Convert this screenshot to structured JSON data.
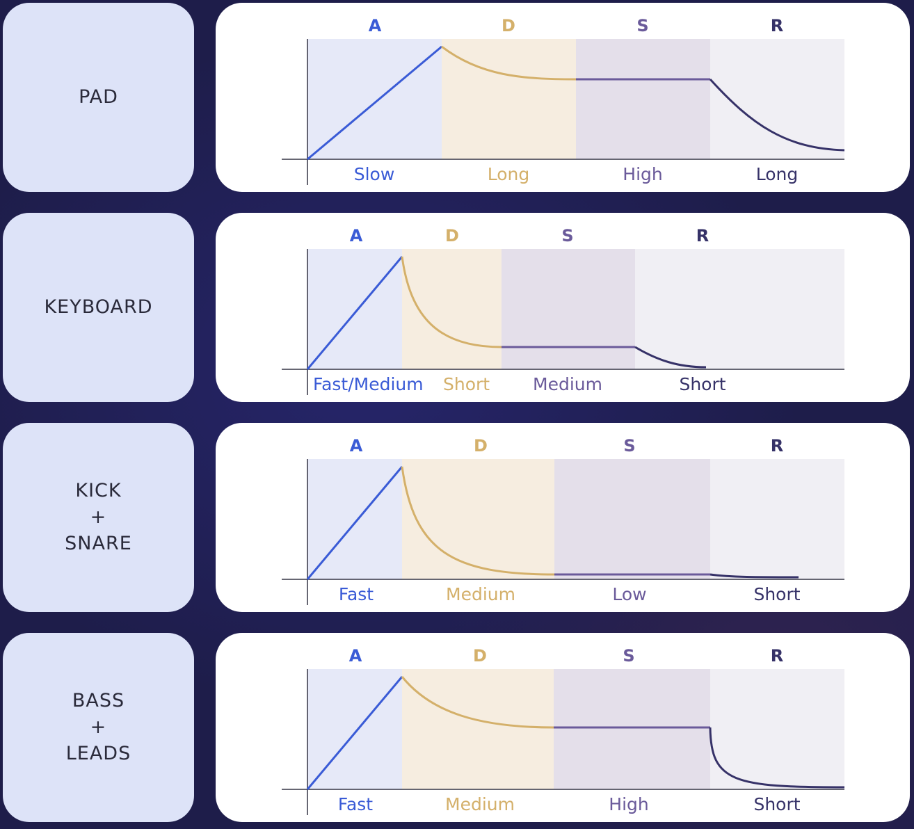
{
  "colors": {
    "attack": "#3a5bd6",
    "decay": "#d4b06a",
    "sustain": "#6a5a9a",
    "release": "#363268",
    "attack_bg": "#e6e9f8",
    "decay_bg": "#f6ede0",
    "sustain_bg": "#e4dfea",
    "release_bg": "#f0eff4",
    "axis": "#333344"
  },
  "envelopes": [
    {
      "name": "PAD",
      "phases": [
        {
          "letter": "A",
          "value": "Slow"
        },
        {
          "letter": "D",
          "value": "Long"
        },
        {
          "letter": "S",
          "value": "High"
        },
        {
          "letter": "R",
          "value": "Long"
        }
      ]
    },
    {
      "name": "KEYBOARD",
      "phases": [
        {
          "letter": "A",
          "value": "Fast/Medium"
        },
        {
          "letter": "D",
          "value": "Short"
        },
        {
          "letter": "S",
          "value": "Medium"
        },
        {
          "letter": "R",
          "value": "Short"
        }
      ]
    },
    {
      "name": "KICK\n+\nSNARE",
      "phases": [
        {
          "letter": "A",
          "value": "Fast"
        },
        {
          "letter": "D",
          "value": "Medium"
        },
        {
          "letter": "S",
          "value": "Low"
        },
        {
          "letter": "R",
          "value": "Short"
        }
      ]
    },
    {
      "name": "BASS\n+\nLEADS",
      "phases": [
        {
          "letter": "A",
          "value": "Fast"
        },
        {
          "letter": "D",
          "value": "Medium"
        },
        {
          "letter": "S",
          "value": "High"
        },
        {
          "letter": "R",
          "value": "Short"
        }
      ]
    }
  ]
}
